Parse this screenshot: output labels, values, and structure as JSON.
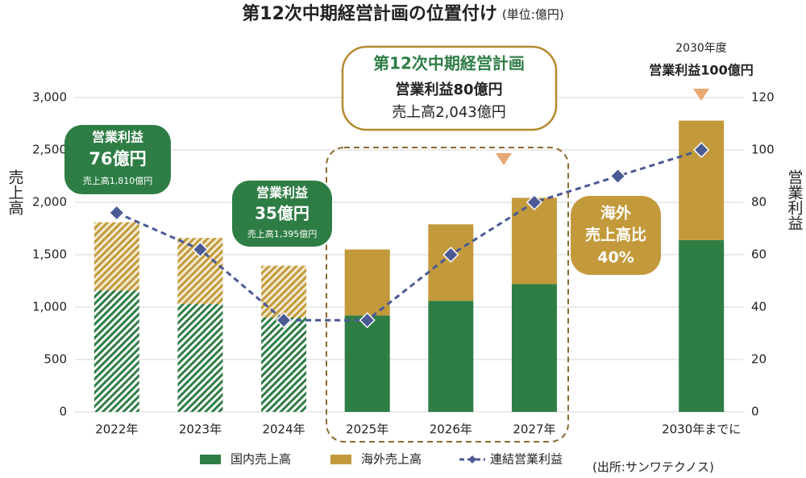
{
  "chart_data": {
    "type": "bar_line",
    "title": "第12次中期経営計画の位置付け",
    "subtitle": "(単位:億円)",
    "y_label": "売上高",
    "y2_label": "営業利益",
    "categories": [
      "2022年",
      "2023年",
      "2024年",
      "2025年",
      "2026年",
      "2027年",
      null,
      "2030年までに"
    ],
    "hatched": [
      true,
      true,
      true,
      false,
      false,
      false,
      false,
      false
    ],
    "series": [
      {
        "name": "国内売上高",
        "color": "#2e7d45",
        "values": [
          1160,
          1030,
          900,
          920,
          1060,
          1220,
          null,
          1640
        ]
      },
      {
        "name": "海外売上高",
        "color": "#c39a3b",
        "values": [
          650,
          630,
          495,
          630,
          730,
          823,
          null,
          1140
        ]
      },
      {
        "name": "連結営業利益",
        "color": "#4b5a94",
        "axis": "y2",
        "type": "line",
        "values": [
          76,
          62,
          35,
          35,
          60,
          80,
          90,
          100
        ]
      }
    ],
    "ylim": [
      0,
      3000
    ],
    "yticks": [
      0,
      500,
      {
        "value": 1000,
        "label": "1,000"
      },
      {
        "value": 1500,
        "label": "1,500"
      },
      {
        "value": 2000,
        "label": "2,000"
      },
      {
        "value": 2500,
        "label": "2,500"
      },
      {
        "value": 3000,
        "label": "3,000"
      }
    ],
    "y2lim": [
      0,
      120
    ],
    "y2ticks": [
      0,
      20,
      40,
      60,
      80,
      100,
      120
    ],
    "grid": true,
    "annotations": {
      "result_2022": [
        "営業利益",
        "76億円",
        "売上高1,810億円"
      ],
      "result_2024": [
        "営業利益",
        "35億円",
        "売上高1,395億円"
      ],
      "plan": [
        "第12次中期経営計画",
        "営業利益80億円",
        "売上高2,043億円"
      ],
      "target_2030": [
        "2030年度",
        "営業利益100億円"
      ],
      "overseas_ratio": [
        "海外",
        "売上高比",
        "40%"
      ]
    },
    "source": "(出所:サンワテクノス)"
  }
}
